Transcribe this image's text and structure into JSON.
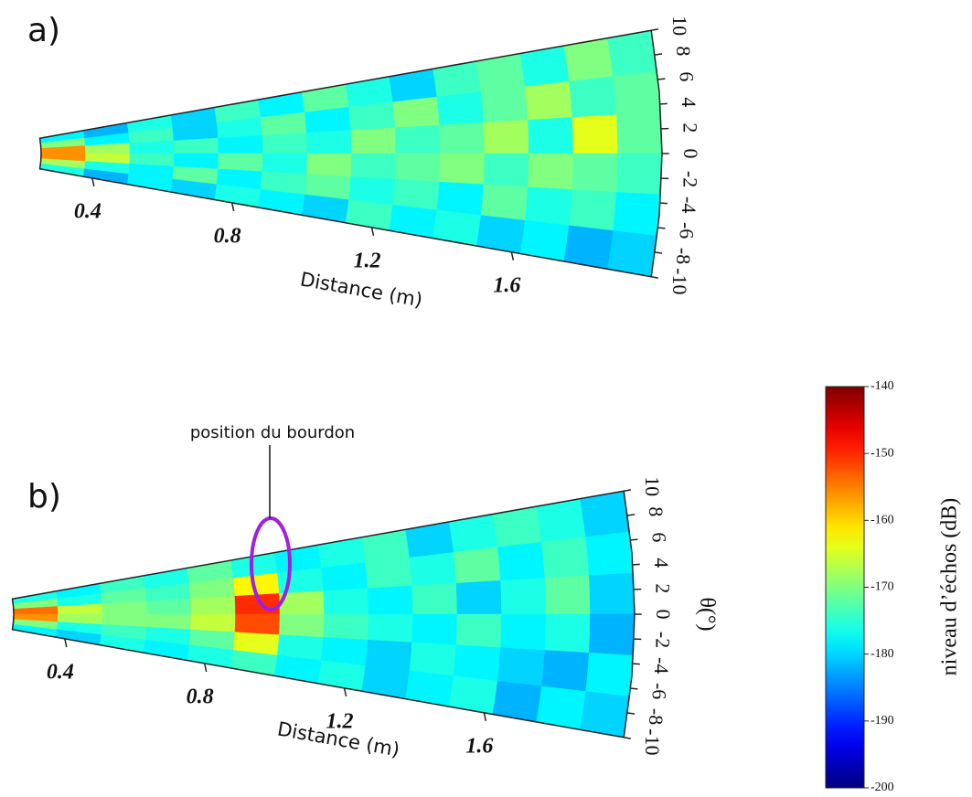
{
  "chart_data": [
    {
      "type": "polar-heatmap",
      "panel_label": "a)",
      "xlabel": "Distance (m)",
      "xlim": [
        0.25,
        2.0
      ],
      "xticks": [
        0.4,
        0.8,
        1.2,
        1.6
      ],
      "thetalim": [
        -10,
        10
      ],
      "thetaticks": [
        10,
        8,
        6,
        4,
        2,
        0,
        -2,
        -4,
        -6,
        -8,
        -10
      ],
      "z": [
        [
          -178,
          -182,
          -176,
          -180,
          -174,
          -178,
          -172,
          -176,
          -180,
          -174,
          -172,
          -176,
          -170,
          -174
        ],
        [
          -170,
          -178,
          -174,
          -180,
          -176,
          -172,
          -178,
          -174,
          -170,
          -176,
          -172,
          -168,
          -174,
          -172
        ],
        [
          -156,
          -168,
          -176,
          -174,
          -178,
          -174,
          -176,
          -170,
          -174,
          -172,
          -168,
          -176,
          -164,
          -172
        ],
        [
          -156,
          -166,
          -174,
          -178,
          -172,
          -176,
          -170,
          -174,
          -172,
          -170,
          -174,
          -170,
          -172,
          -174
        ],
        [
          -168,
          -176,
          -178,
          -172,
          -178,
          -174,
          -172,
          -176,
          -174,
          -178,
          -172,
          -176,
          -174,
          -178
        ],
        [
          -176,
          -182,
          -178,
          -180,
          -176,
          -178,
          -180,
          -174,
          -178,
          -176,
          -180,
          -178,
          -182,
          -180
        ]
      ]
    },
    {
      "type": "polar-heatmap",
      "panel_label": "b)",
      "xlabel": "Distance (m)",
      "theta_label": "θ(°)",
      "annotation": "position du bourdon",
      "xlim": [
        0.25,
        2.0
      ],
      "xticks": [
        0.4,
        0.8,
        1.2,
        1.6
      ],
      "thetalim": [
        -10,
        10
      ],
      "thetaticks": [
        10,
        8,
        6,
        4,
        2,
        0,
        -2,
        -4,
        -6,
        -8,
        -10
      ],
      "z": [
        [
          -176,
          -178,
          -174,
          -176,
          -172,
          -176,
          -178,
          -176,
          -174,
          -180,
          -176,
          -174,
          -176,
          -180
        ],
        [
          -170,
          -176,
          -172,
          -174,
          -170,
          -162,
          -176,
          -178,
          -174,
          -176,
          -172,
          -178,
          -174,
          -178
        ],
        [
          -154,
          -166,
          -170,
          -172,
          -168,
          -150,
          -168,
          -176,
          -178,
          -174,
          -180,
          -176,
          -172,
          -180
        ],
        [
          -156,
          -168,
          -170,
          -170,
          -166,
          -152,
          -170,
          -174,
          -176,
          -178,
          -174,
          -178,
          -176,
          -182
        ],
        [
          -170,
          -176,
          -174,
          -176,
          -172,
          -164,
          -176,
          -178,
          -180,
          -176,
          -178,
          -180,
          -182,
          -178
        ],
        [
          -178,
          -180,
          -176,
          -178,
          -176,
          -174,
          -178,
          -176,
          -180,
          -178,
          -176,
          -182,
          -178,
          -180
        ]
      ]
    },
    {
      "type": "colorbar",
      "label": "niveau d’échos (dB)",
      "clim": [
        -200,
        -140
      ],
      "ticks": [
        -140,
        -150,
        -160,
        -170,
        -180,
        -190,
        -200
      ]
    }
  ]
}
